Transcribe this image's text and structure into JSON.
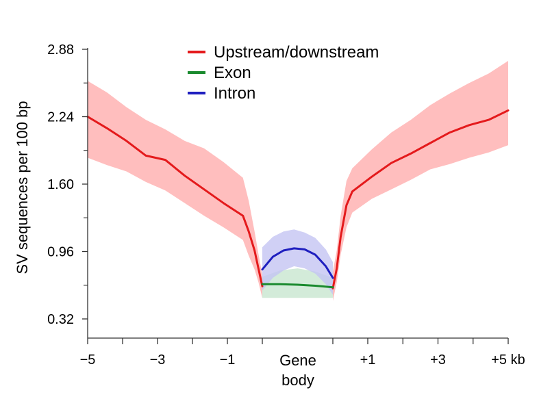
{
  "chart_data": {
    "type": "line",
    "ylabel": "SV sequences per 100 bp",
    "ylim": [
      0.32,
      2.88
    ],
    "yticks": [
      0.32,
      0.96,
      1.6,
      2.24,
      2.88
    ],
    "ytick_labels": [
      "0.32",
      "0.96",
      "1.60",
      "2.24",
      "2.88"
    ],
    "x_tick_labels": [
      {
        "pos": -5,
        "label": "−5"
      },
      {
        "pos": -3,
        "label": "−3"
      },
      {
        "pos": -1,
        "label": "−1"
      },
      {
        "pos": 1,
        "label": "+1"
      },
      {
        "pos": 3,
        "label": "+3"
      },
      {
        "pos": 5,
        "label": "+5 kb"
      }
    ],
    "gene_body_label": [
      "Gene",
      "body"
    ],
    "legend_position": "top-center",
    "series": [
      {
        "name": "Upstream/downstream",
        "color": "#e41a1c",
        "band_color": "#ffb3b3",
        "segments": [
          {
            "x": [
              -5,
              -4.5,
              -4,
              -3.5,
              -3,
              -2.5,
              -2,
              -1.5,
              -1,
              -0.85,
              -0.7,
              -0.6,
              -0.5
            ],
            "y": [
              2.24,
              2.13,
              2.01,
              1.87,
              1.83,
              1.68,
              1.55,
              1.42,
              1.3,
              1.15,
              0.97,
              0.8,
              0.63
            ],
            "upper": [
              2.58,
              2.47,
              2.33,
              2.21,
              2.12,
              2.01,
              1.94,
              1.81,
              1.66,
              1.44,
              1.15,
              0.94,
              0.74
            ],
            "lower": [
              1.85,
              1.78,
              1.72,
              1.62,
              1.54,
              1.42,
              1.3,
              1.19,
              1.07,
              0.92,
              0.79,
              0.67,
              0.52
            ]
          },
          {
            "x": [
              0.5,
              0.6,
              0.7,
              0.85,
              1,
              1.5,
              2,
              2.5,
              3,
              3.5,
              4,
              4.5,
              5
            ],
            "y": [
              0.61,
              0.8,
              1.1,
              1.4,
              1.53,
              1.67,
              1.8,
              1.89,
              1.99,
              2.09,
              2.16,
              2.21,
              2.3
            ],
            "upper": [
              0.77,
              0.97,
              1.3,
              1.63,
              1.75,
              1.93,
              2.09,
              2.21,
              2.35,
              2.46,
              2.56,
              2.65,
              2.77
            ],
            "lower": [
              0.49,
              0.67,
              0.93,
              1.19,
              1.33,
              1.46,
              1.55,
              1.64,
              1.74,
              1.79,
              1.85,
              1.9,
              1.97
            ]
          }
        ]
      },
      {
        "name": "Exon",
        "color": "#1a8a2e",
        "band_color": "#c8e6cf",
        "segments": [
          {
            "x": [
              -0.5,
              -0.25,
              0,
              0.25,
              0.5
            ],
            "y": [
              0.65,
              0.65,
              0.645,
              0.635,
              0.62
            ],
            "upper": [
              0.72,
              0.78,
              0.8,
              0.77,
              0.71
            ],
            "lower": [
              0.52,
              0.52,
              0.52,
              0.52,
              0.52
            ]
          }
        ]
      },
      {
        "name": "Intron",
        "color": "#1f1fbf",
        "band_color": "#c4c4f2",
        "segments": [
          {
            "x": [
              -0.5,
              -0.35,
              -0.2,
              -0.05,
              0.1,
              0.25,
              0.4,
              0.5
            ],
            "y": [
              0.79,
              0.91,
              0.97,
              0.99,
              0.98,
              0.93,
              0.82,
              0.71
            ],
            "upper": [
              1.0,
              1.1,
              1.15,
              1.17,
              1.14,
              1.09,
              0.98,
              0.86
            ],
            "lower": [
              0.59,
              0.71,
              0.78,
              0.82,
              0.8,
              0.75,
              0.65,
              0.55
            ]
          }
        ]
      }
    ]
  }
}
